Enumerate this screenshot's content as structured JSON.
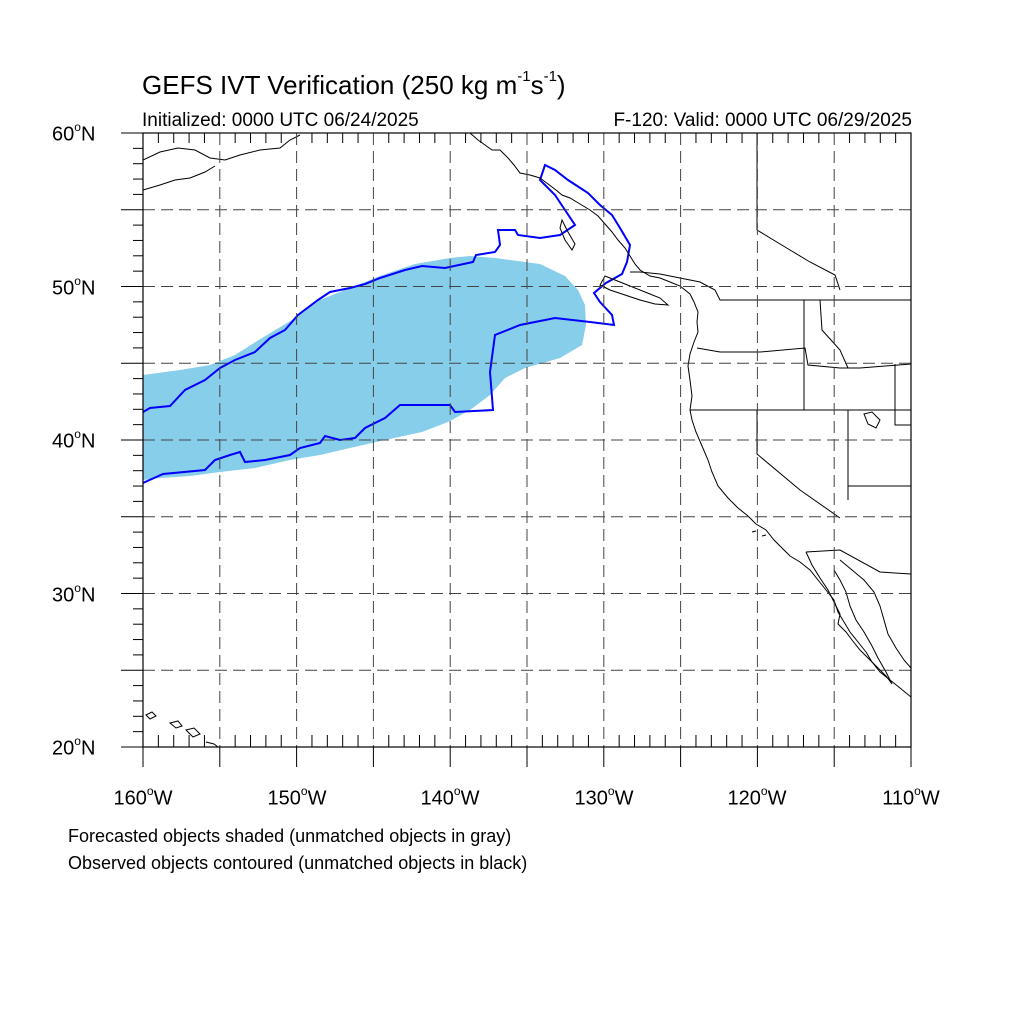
{
  "title": {
    "main": "GEFS IVT Verification (250 kg m",
    "exp1": "-1",
    "mid": "s",
    "exp2": "-1",
    "end": ")"
  },
  "initialized": "Initialized: 0000 UTC 06/24/2025",
  "valid": "F-120: Valid: 0000 UTC 06/29/2025",
  "lat_labels": [
    {
      "value": "60",
      "suffix": "N"
    },
    {
      "value": "50",
      "suffix": "N"
    },
    {
      "value": "40",
      "suffix": "N"
    },
    {
      "value": "30",
      "suffix": "N"
    },
    {
      "value": "20",
      "suffix": "N"
    }
  ],
  "lon_labels": [
    {
      "value": "160",
      "suffix": "W"
    },
    {
      "value": "150",
      "suffix": "W"
    },
    {
      "value": "140",
      "suffix": "W"
    },
    {
      "value": "130",
      "suffix": "W"
    },
    {
      "value": "120",
      "suffix": "W"
    },
    {
      "value": "110",
      "suffix": "W"
    }
  ],
  "degree_symbol": "o",
  "notes": [
    "Forecasted objects shaded (unmatched objects in gray)",
    "Observed objects contoured (unmatched objects in black)"
  ],
  "map_extent": {
    "lon_min": -160,
    "lon_max": -110,
    "lat_min": 20,
    "lat_max": 60
  },
  "colors": {
    "forecast_fill": "#87ceeb",
    "observed_contour": "#0000ff",
    "coastline": "#000000",
    "gridline": "#444444"
  }
}
